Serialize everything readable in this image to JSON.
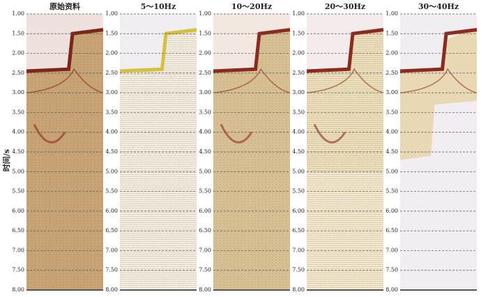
{
  "y_axis": {
    "label": "时间/s",
    "range": [
      1,
      8
    ],
    "ticks": [
      {
        "value": 1,
        "label": "1.00"
      },
      {
        "value": 1.5,
        "label": "1.50"
      },
      {
        "value": 2,
        "label": "2.00"
      },
      {
        "value": 2.5,
        "label": "2.50"
      },
      {
        "value": 3,
        "label": "3.00"
      },
      {
        "value": 3.5,
        "label": "3.50"
      },
      {
        "value": 4,
        "label": "4.00"
      },
      {
        "value": 4.5,
        "label": "4.50"
      },
      {
        "value": 5,
        "label": "5.00"
      },
      {
        "value": 5.5,
        "label": "5.50"
      },
      {
        "value": 6,
        "label": "6.00"
      },
      {
        "value": 6.5,
        "label": "6.50"
      },
      {
        "value": 7,
        "label": "7.00"
      },
      {
        "value": 7.5,
        "label": "7.50"
      },
      {
        "value": 8,
        "label": "8.00"
      }
    ]
  },
  "panels": [
    {
      "title": "原始资料"
    },
    {
      "title": "5～10Hz"
    },
    {
      "title": "10～20Hz"
    },
    {
      "title": "20～30Hz"
    },
    {
      "title": "30～40Hz"
    }
  ]
}
